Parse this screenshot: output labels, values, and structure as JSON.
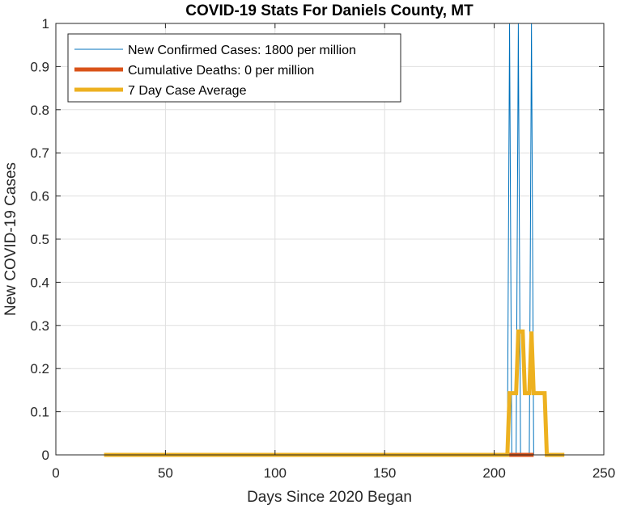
{
  "chart_data": {
    "type": "line",
    "title": "COVID-19 Stats For Daniels County, MT",
    "xlabel": "Days Since 2020 Began",
    "ylabel": "New COVID-19 Cases",
    "xlim": [
      0,
      250
    ],
    "ylim": [
      0,
      1
    ],
    "xticks": [
      0,
      50,
      100,
      150,
      200,
      250
    ],
    "yticks": [
      0,
      0.1,
      0.2,
      0.3,
      0.4,
      0.5,
      0.6,
      0.7,
      0.8,
      0.9,
      1
    ],
    "xtick_labels": [
      "0",
      "50",
      "100",
      "150",
      "200",
      "250"
    ],
    "ytick_labels": [
      "0",
      "0.1",
      "0.2",
      "0.3",
      "0.4",
      "0.5",
      "0.6",
      "0.7",
      "0.8",
      "0.9",
      "1"
    ],
    "grid": true,
    "legend_position": "top-left",
    "series": [
      {
        "name": "New Confirmed Cases: 1800 per million",
        "color": "#0072BD",
        "x": [
          22,
          206,
          207,
          208,
          209,
          210,
          211,
          212,
          213,
          214,
          215,
          216,
          217,
          218,
          219,
          232
        ],
        "y": [
          0,
          0,
          1,
          0,
          0,
          0,
          1,
          0,
          0,
          0,
          0,
          0,
          1,
          0,
          0,
          0
        ]
      },
      {
        "name": "Cumulative Deaths: 0 per million",
        "color": "#D95319",
        "x": [
          206,
          218
        ],
        "y": [
          0,
          0
        ]
      },
      {
        "name": "7 Day Case Average",
        "color": "#EDB120",
        "x": [
          22,
          206,
          207,
          208,
          209,
          210,
          211,
          212,
          213,
          214,
          215,
          216,
          217,
          218,
          219,
          220,
          221,
          222,
          223,
          224,
          232
        ],
        "y": [
          0,
          0,
          0.143,
          0.143,
          0.143,
          0.143,
          0.286,
          0.286,
          0.286,
          0.143,
          0.143,
          0.143,
          0.286,
          0.143,
          0.143,
          0.143,
          0.143,
          0.143,
          0.143,
          0,
          0
        ]
      }
    ]
  }
}
